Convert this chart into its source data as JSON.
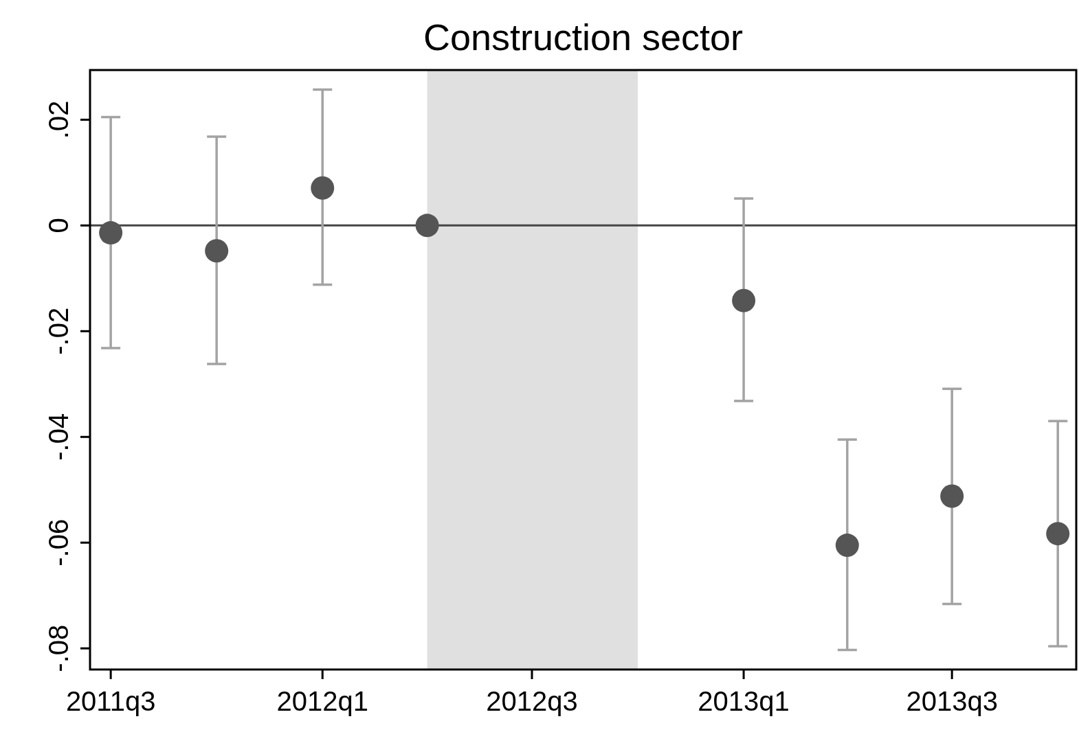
{
  "chart_data": {
    "type": "scatter",
    "title": "Construction sector",
    "x": [
      "2011-07",
      "2011-10",
      "2012-01",
      "2012-04",
      "2013-01",
      "2013-04",
      "2013-07",
      "2013-10"
    ],
    "values": [
      -0.0014,
      -0.0048,
      0.0071,
      0,
      -0.0142,
      -0.0605,
      -0.0512,
      -0.0583
    ],
    "errors": [
      [
        -0.0232,
        0.0205
      ],
      [
        -0.0262,
        0.0168
      ],
      [
        -0.0112,
        0.0257
      ],
      null,
      [
        -0.0332,
        0.0051
      ],
      [
        -0.0803,
        -0.0405
      ],
      [
        -0.0716,
        -0.0309
      ],
      [
        -0.0796,
        -0.037
      ]
    ],
    "color": "#555555",
    "marker": "circle",
    "grid": false,
    "xlim": [
      "2011-06-13",
      "2013-10-17"
    ],
    "xticks": [
      {
        "value": "2011-07",
        "label": "2011q3"
      },
      {
        "value": "2012-01",
        "label": "2012q1"
      },
      {
        "value": "2012-07",
        "label": "2012q3"
      },
      {
        "value": "2013-01",
        "label": "2013q1"
      },
      {
        "value": "2013-07",
        "label": "2013q3"
      }
    ],
    "ylim": [
      -0.084,
      0.0294
    ],
    "yticks": [
      {
        "value": -0.08,
        "label": "-.08"
      },
      {
        "value": -0.06,
        "label": "-.06"
      },
      {
        "value": -0.04,
        "label": "-.04"
      },
      {
        "value": -0.02,
        "label": "-.02"
      },
      0,
      {
        "value": 0.02,
        "label": ".02"
      }
    ],
    "ref_lines": [
      {
        "axis": "y",
        "value": 0,
        "color": "#444444",
        "line_style": "solid"
      }
    ],
    "bands": [
      {
        "axis": "x",
        "from": "2012-04",
        "to": "2012-10",
        "color": "#e0e0e0"
      }
    ]
  }
}
